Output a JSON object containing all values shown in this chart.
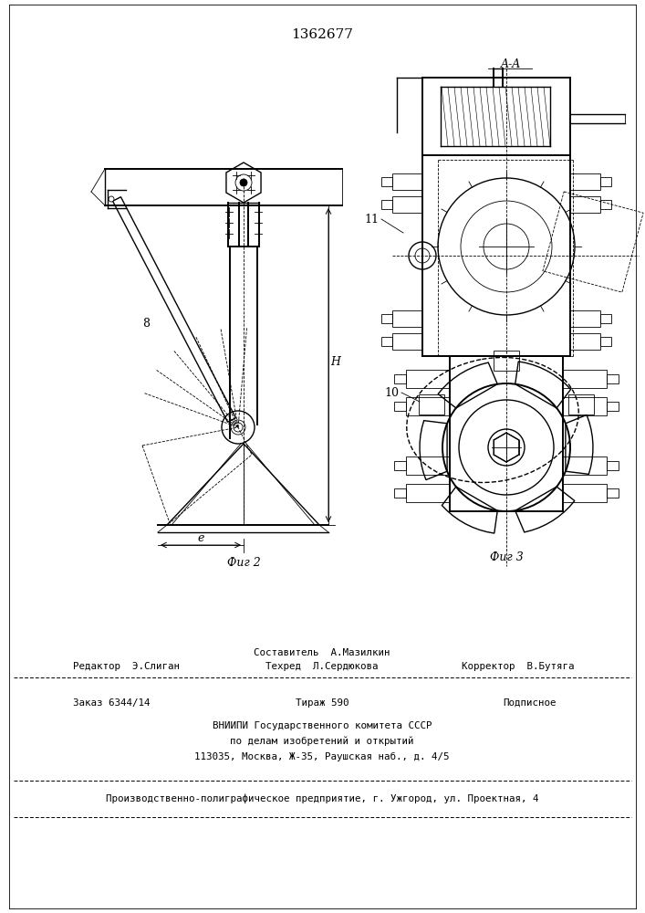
{
  "title": "1362677",
  "fig2_label": "Фиг 2",
  "fig3_label": "Фиг 3",
  "label_8": "8",
  "label_10": "10",
  "label_11": "11",
  "label_AA": "A-A",
  "label_e": "е",
  "label_H": "H",
  "footer": {
    "line1_center": "Составитель  А.Мазилкин",
    "line2_left": "Редактор  Э.Слиган",
    "line2_center": "Техред  Л.Сердюкова",
    "line2_right": "Корректор  В.Бутяга",
    "line3_left": "Заказ 6344/14",
    "line3_center": "Тираж 590",
    "line3_right": "Подписное",
    "line4_center": "ВНИИПИ Государственного комитета СССР",
    "line5_center": "по делам изобретений и открытий",
    "line6_center": "113035, Москва, Ж-35, Раушская наб., д. 4/5",
    "line7": "Производственно-полиграфическое предприятие, г. Ужгород, ул. Проектная, 4"
  }
}
